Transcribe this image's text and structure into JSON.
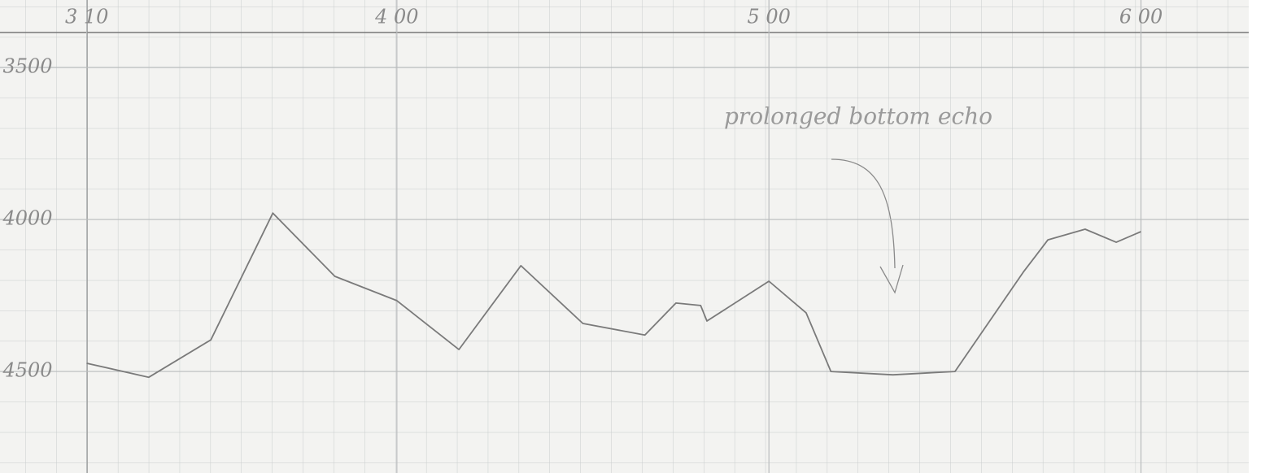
{
  "chart_data": {
    "type": "line",
    "x": [
      190,
      200,
      210,
      220,
      230,
      240,
      250,
      260,
      270,
      280,
      285,
      289,
      290,
      300,
      306,
      310,
      320,
      330,
      341,
      345,
      351,
      356,
      360
    ],
    "values": [
      4473,
      4519,
      4396,
      3979,
      4187,
      4267,
      4428,
      4152,
      4342,
      4380,
      4275,
      4283,
      4334,
      4203,
      4307,
      4500,
      4511,
      4500,
      4174,
      4067,
      4032,
      4075,
      4040
    ],
    "color": "#7a7a7a",
    "xlim": [
      176,
      380
    ],
    "xticks": [
      {
        "value": 190,
        "label": "3 10"
      },
      {
        "value": 240,
        "label": "4 00"
      },
      {
        "value": 300,
        "label": "5 00"
      },
      {
        "value": 360,
        "label": "6 00"
      }
    ],
    "ylim": [
      3385,
      4834
    ],
    "y_inverted": true,
    "yticks": [
      3500,
      4000,
      4500
    ],
    "grid": true,
    "annotation": "prolonged bottom echo"
  }
}
